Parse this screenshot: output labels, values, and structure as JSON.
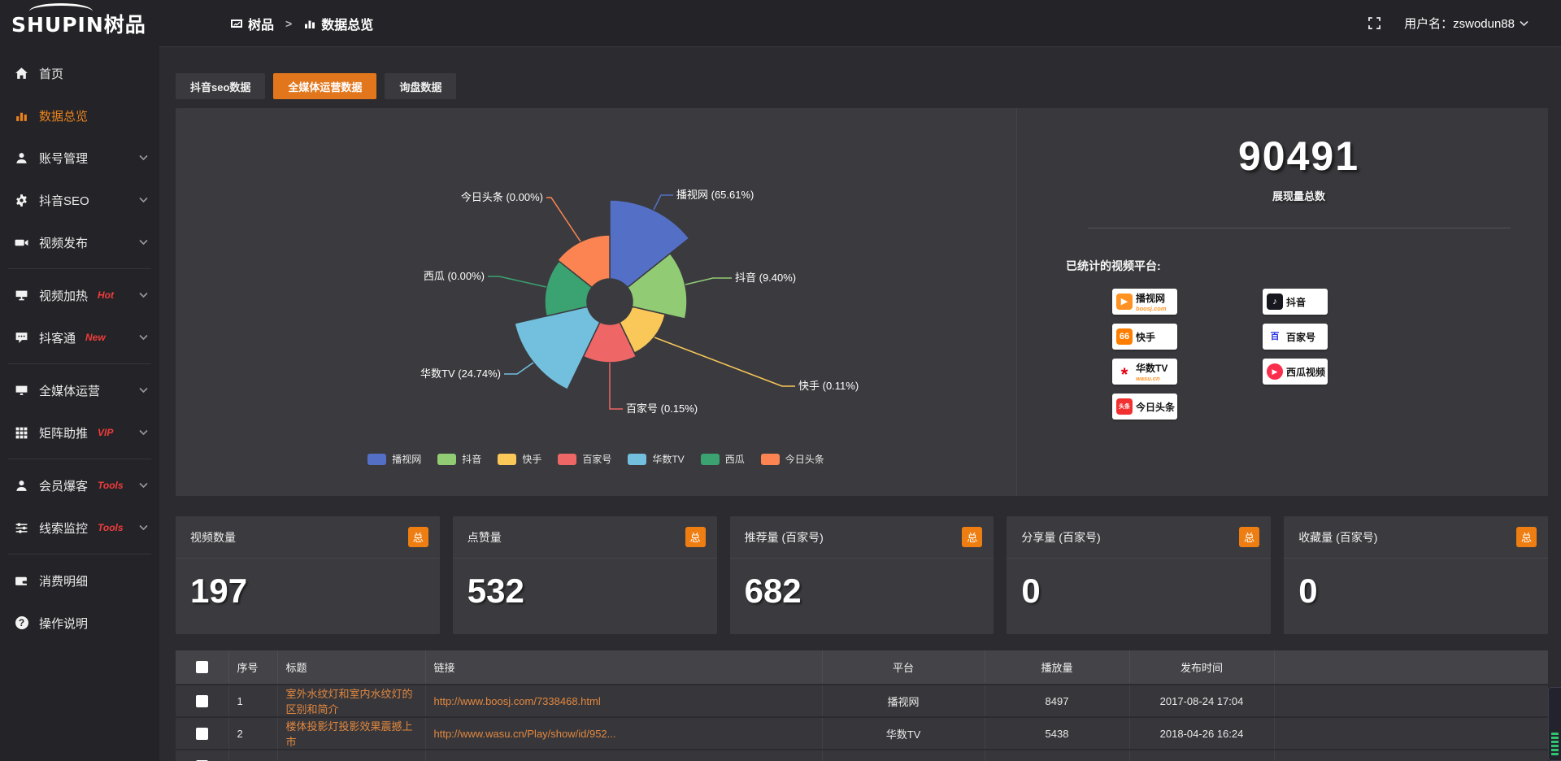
{
  "topbar": {
    "logo_text": "SHUPIN树品",
    "breadcrumb": {
      "root": "树品",
      "separator": ">",
      "current": "数据总览"
    },
    "username_label": "用户名：zswodun88"
  },
  "sidebar": {
    "items": [
      {
        "label": "首页",
        "badge": ""
      },
      {
        "label": "数据总览",
        "badge": ""
      },
      {
        "label": "账号管理",
        "badge": ""
      },
      {
        "label": "抖音SEO",
        "badge": ""
      },
      {
        "label": "视频发布",
        "badge": ""
      },
      {
        "label": "视频加热",
        "badge": "Hot"
      },
      {
        "label": "抖客通",
        "badge": "New"
      },
      {
        "label": "全媒体运营",
        "badge": ""
      },
      {
        "label": "矩阵助推",
        "badge": "VIP"
      },
      {
        "label": "会员爆客",
        "badge": "Tools"
      },
      {
        "label": "线索监控",
        "badge": "Tools"
      },
      {
        "label": "消费明细",
        "badge": ""
      },
      {
        "label": "操作说明",
        "badge": ""
      }
    ]
  },
  "tabs": [
    {
      "label": "抖音seo数据"
    },
    {
      "label": "全媒体运营数据"
    },
    {
      "label": "询盘数据"
    }
  ],
  "chart_data": {
    "type": "pie",
    "variant": "nightingale-rose",
    "unit": "%",
    "legend_position": "bottom",
    "label_format": "{name} ({value}%)",
    "slices": [
      {
        "name": "播视网",
        "value": 65.61,
        "color": "#5470c6"
      },
      {
        "name": "抖音",
        "value": 9.4,
        "color": "#91cc75"
      },
      {
        "name": "快手",
        "value": 0.11,
        "color": "#fac858"
      },
      {
        "name": "百家号",
        "value": 0.15,
        "color": "#ee6666"
      },
      {
        "name": "华数TV",
        "value": 24.74,
        "color": "#73c0de"
      },
      {
        "name": "西瓜",
        "value": 0.0,
        "color": "#3ba272"
      },
      {
        "name": "今日头条",
        "value": 0.0,
        "color": "#fc8452"
      }
    ]
  },
  "summary": {
    "total_value": "90491",
    "total_label": "展现量总数",
    "platforms_title": "已统计的视频平台:",
    "platforms": [
      {
        "title": "播视网",
        "sub": "boosj.com",
        "icon_text": "▶",
        "icon_bg": "#ff9222",
        "icon_color": "#ffffff",
        "sub_color": "#ff9222"
      },
      {
        "title": "抖音",
        "sub": "",
        "icon_text": "♪",
        "icon_bg": "#17171f",
        "icon_color": "#ffffff"
      },
      {
        "title": "快手",
        "sub": "",
        "icon_text": "66",
        "icon_bg": "#ff7e00",
        "icon_color": "#ffffff"
      },
      {
        "title": "百家号",
        "sub": "",
        "icon_text": "百",
        "icon_bg": "#ffffff",
        "icon_color": "#2932e1"
      },
      {
        "title": "华数TV",
        "sub": "wasu.cn",
        "icon_text": "*",
        "icon_bg": "#ffffff",
        "icon_color": "#e60012",
        "sub_color": "#ff9222"
      },
      {
        "title": "西瓜视频",
        "sub": "",
        "icon_text": "▶",
        "icon_bg": "#fa2e4d",
        "icon_color": "#ffffff"
      },
      {
        "title": "今日头条",
        "sub": "",
        "icon_text": "头条",
        "icon_bg": "#f23030",
        "icon_color": "#ffffff"
      }
    ]
  },
  "stats_cards": [
    {
      "title": "视频数量",
      "badge": "总",
      "value": "197"
    },
    {
      "title": "点赞量",
      "badge": "总",
      "value": "532"
    },
    {
      "title": "推荐量 (百家号)",
      "badge": "总",
      "value": "682"
    },
    {
      "title": "分享量 (百家号)",
      "badge": "总",
      "value": "0"
    },
    {
      "title": "收藏量 (百家号)",
      "badge": "总",
      "value": "0"
    }
  ],
  "table": {
    "headers": [
      "序号",
      "标题",
      "链接",
      "平台",
      "播放量",
      "发布时间"
    ],
    "rows": [
      {
        "index": "1",
        "title": "室外水纹灯和室内水纹灯的区别和简介",
        "link": "http://www.boosj.com/7338468.html",
        "platform": "播视网",
        "plays": "8497",
        "published": "2017-08-24 17:04"
      },
      {
        "index": "2",
        "title": "楼体投影灯投影效果震撼上市",
        "link": "http://www.wasu.cn/Play/show/id/952...",
        "platform": "华数TV",
        "plays": "5438",
        "published": "2018-04-26 16:24"
      }
    ]
  }
}
